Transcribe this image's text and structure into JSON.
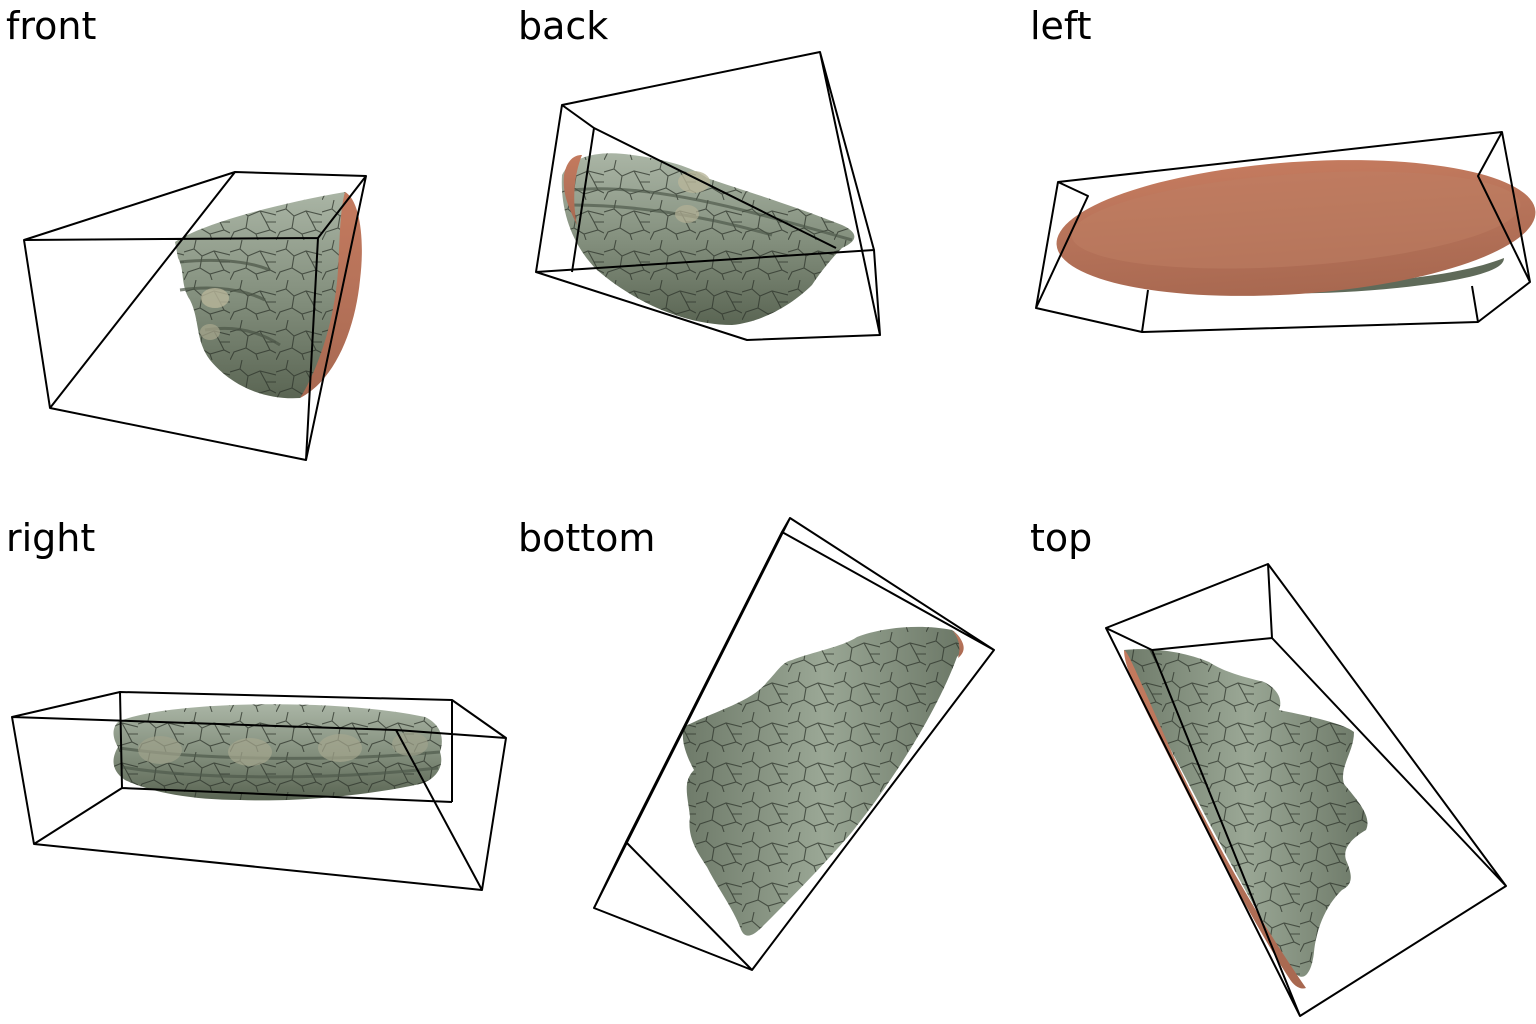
{
  "views": [
    {
      "id": "front",
      "label": "front"
    },
    {
      "id": "back",
      "label": "back"
    },
    {
      "id": "left",
      "label": "left"
    },
    {
      "id": "right",
      "label": "right"
    },
    {
      "id": "bottom",
      "label": "bottom"
    },
    {
      "id": "top",
      "label": "top"
    }
  ],
  "colors": {
    "shell_light": "#aab5a5",
    "shell_mid": "#7e8a79",
    "shell_dark": "#56604f",
    "crack": "#2f352c",
    "rim": "#d98a6b",
    "rim_dark": "#b8694d",
    "box_stroke": "#000000"
  }
}
